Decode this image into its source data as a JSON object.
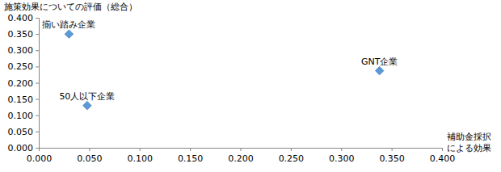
{
  "chart_data": {
    "type": "scatter",
    "y_label": "施策効果についての評価（総合）",
    "x_label": "補助金採択\nによる効果",
    "labels": [
      "揃い踏み企業",
      "50人以下企業",
      "GNT企業"
    ],
    "x": [
      0.03,
      0.048,
      0.338
    ],
    "values": [
      0.35,
      0.13,
      0.237
    ],
    "color": "#5b9bd5",
    "marker": "diamond",
    "grid": false,
    "xlim": [
      0,
      0.4
    ],
    "ylim": [
      0,
      0.4
    ],
    "xticks": [
      {
        "value": 0,
        "label": "0.000"
      },
      {
        "value": 0.05,
        "label": "0.050"
      },
      {
        "value": 0.1,
        "label": "0.100"
      },
      {
        "value": 0.15,
        "label": "0.150"
      },
      {
        "value": 0.2,
        "label": "0.200"
      },
      {
        "value": 0.25,
        "label": "0.250"
      },
      {
        "value": 0.3,
        "label": "0.300"
      },
      {
        "value": 0.35,
        "label": "0.350"
      },
      {
        "value": 0.4,
        "label": "0.400"
      }
    ],
    "yticks": [
      {
        "value": 0,
        "label": "0.000"
      },
      {
        "value": 0.05,
        "label": "0.050"
      },
      {
        "value": 0.1,
        "label": "0.100"
      },
      {
        "value": 0.15,
        "label": "0.150"
      },
      {
        "value": 0.2,
        "label": "0.200"
      },
      {
        "value": 0.25,
        "label": "0.250"
      },
      {
        "value": 0.3,
        "label": "0.300"
      },
      {
        "value": 0.35,
        "label": "0.350"
      },
      {
        "value": 0.4,
        "label": "0.400"
      }
    ]
  }
}
